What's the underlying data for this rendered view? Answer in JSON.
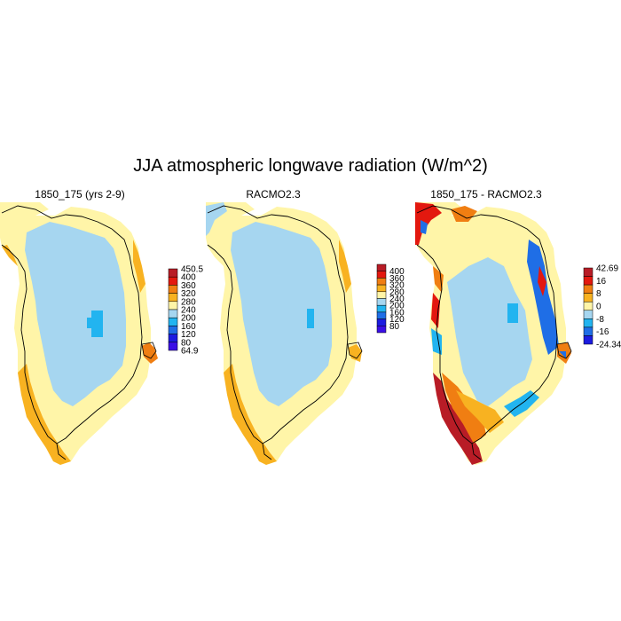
{
  "title": "JJA atmospheric longwave radiation (W/m^2)",
  "colors": {
    "pale_yellow": "#fff5a8",
    "light_blue": "#a6d6f0",
    "orange": "#f8b221",
    "dark_orange": "#f07e12",
    "red": "#e3180f",
    "dark_red": "#b81c26",
    "cyan": "#22b4f0",
    "blue": "#1f6ee6",
    "dark_blue": "#1c1ce0",
    "purple": "#3a0fe6",
    "white": "#ffffff"
  },
  "panels": [
    {
      "title": "1850_175 (yrs 2-9)",
      "colorbar": {
        "labels": [
          "450.5",
          "400",
          "360",
          "320",
          "280",
          "240",
          "200",
          "160",
          "120",
          "80",
          "64.9"
        ],
        "colors": [
          "#b81c26",
          "#e3180f",
          "#f07e12",
          "#f8b221",
          "#fff5a8",
          "#a6d6f0",
          "#22b4f0",
          "#1f6ee6",
          "#1c1ce0",
          "#3a0fe6"
        ]
      }
    },
    {
      "title": "RACMO2.3",
      "colorbar": {
        "labels": [
          "400",
          "360",
          "320",
          "280",
          "240",
          "200",
          "160",
          "120",
          "80"
        ],
        "colors": [
          "#b81c26",
          "#e3180f",
          "#f07e12",
          "#f8b221",
          "#fff5a8",
          "#a6d6f0",
          "#22b4f0",
          "#1f6ee6",
          "#1c1ce0",
          "#3a0fe6"
        ]
      }
    },
    {
      "title": "1850_175 - RACMO2.3",
      "colorbar": {
        "labels": [
          "42.69",
          "16",
          "8",
          "0",
          "-8",
          "-16",
          "-24.34"
        ],
        "colors": [
          "#b81c26",
          "#e3180f",
          "#f07e12",
          "#f8b221",
          "#fff5a8",
          "#a6d6f0",
          "#22b4f0",
          "#1f6ee6",
          "#1c1ce0"
        ]
      }
    }
  ]
}
